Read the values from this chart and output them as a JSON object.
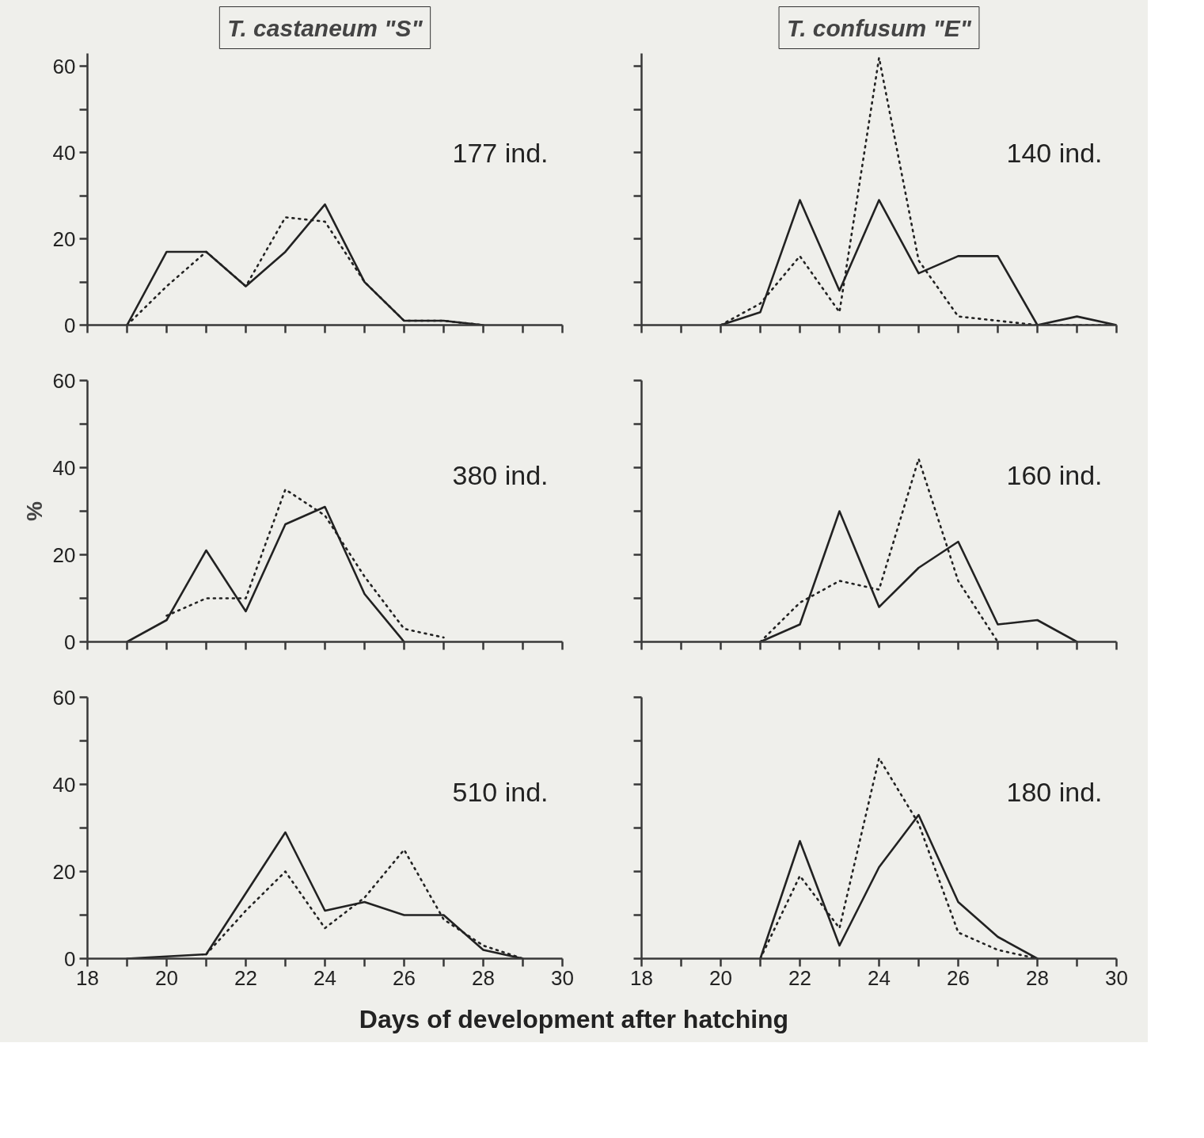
{
  "chart_data": [
    {
      "type": "line",
      "title": "T. castaneum \"S\"",
      "annotations": [
        "177 ind."
      ],
      "x": [
        19,
        20,
        21,
        22,
        23,
        24,
        25,
        26,
        27,
        28
      ],
      "xlim": [
        18,
        30
      ],
      "xticks": [
        18,
        {
          "value": 19,
          "label": null
        },
        20,
        {
          "value": 21,
          "label": null
        },
        22,
        {
          "value": 23,
          "label": null
        },
        24,
        {
          "value": 25,
          "label": null
        },
        26,
        {
          "value": 27,
          "label": null
        },
        28,
        {
          "value": 29,
          "label": null
        },
        30
      ],
      "ylim": [
        0,
        63
      ],
      "yticks": [
        0,
        {
          "value": 10,
          "label": null
        },
        20,
        {
          "value": 30,
          "label": null
        },
        40,
        {
          "value": 50,
          "label": null
        },
        60
      ],
      "tick_labels": "y",
      "series": [
        {
          "color": "#222222",
          "line_style": "solid",
          "values": [
            0,
            17,
            17,
            9,
            17,
            28,
            10,
            1,
            1,
            0
          ]
        },
        {
          "color": "#222222",
          "line_style": "dotted",
          "values": [
            0,
            9,
            17,
            9,
            25,
            24,
            10,
            1,
            1,
            0
          ]
        }
      ]
    },
    {
      "type": "line",
      "title": "T. confusum \"E\"",
      "annotations": [
        "140 ind."
      ],
      "x": [
        20,
        21,
        22,
        23,
        24,
        25,
        26,
        27,
        28,
        29,
        30
      ],
      "xlim": [
        18,
        30
      ],
      "xticks": [
        18,
        {
          "value": 19,
          "label": null
        },
        20,
        {
          "value": 21,
          "label": null
        },
        22,
        {
          "value": 23,
          "label": null
        },
        24,
        {
          "value": 25,
          "label": null
        },
        26,
        {
          "value": 27,
          "label": null
        },
        28,
        {
          "value": 29,
          "label": null
        },
        30
      ],
      "ylim": [
        0,
        63
      ],
      "yticks": [
        0,
        {
          "value": 10,
          "label": null
        },
        20,
        {
          "value": 30,
          "label": null
        },
        40,
        {
          "value": 50,
          "label": null
        },
        60
      ],
      "tick_labels": false,
      "series": [
        {
          "color": "#222222",
          "line_style": "solid",
          "values": [
            0,
            3,
            29,
            8,
            29,
            12,
            16,
            16,
            0,
            2,
            0
          ]
        },
        {
          "color": "#222222",
          "line_style": "dotted",
          "values": [
            0,
            5,
            16,
            3,
            62,
            15,
            2,
            1,
            0,
            0,
            0
          ]
        }
      ]
    },
    {
      "type": "line",
      "ylabel": "%",
      "annotations": [
        "380 ind."
      ],
      "x": [
        19,
        20,
        21,
        22,
        23,
        24,
        25,
        26,
        27
      ],
      "xlim": [
        18,
        30
      ],
      "xticks": [
        18,
        {
          "value": 19,
          "label": null
        },
        20,
        {
          "value": 21,
          "label": null
        },
        22,
        {
          "value": 23,
          "label": null
        },
        24,
        {
          "value": 25,
          "label": null
        },
        26,
        {
          "value": 27,
          "label": null
        },
        28,
        {
          "value": 29,
          "label": null
        },
        30
      ],
      "ylim": [
        0,
        60
      ],
      "yticks": [
        0,
        {
          "value": 10,
          "label": null
        },
        20,
        {
          "value": 30,
          "label": null
        },
        40,
        {
          "value": 50,
          "label": null
        },
        60
      ],
      "tick_labels": "y",
      "series": [
        {
          "color": "#222222",
          "line_style": "solid",
          "values": [
            0,
            5,
            21,
            7,
            27,
            31,
            11,
            0,
            null
          ]
        },
        {
          "color": "#222222",
          "line_style": "dotted",
          "values": [
            null,
            6,
            10,
            10,
            35,
            29,
            15,
            3,
            1
          ]
        }
      ]
    },
    {
      "type": "line",
      "annotations": [
        "160 ind."
      ],
      "x": [
        21,
        22,
        23,
        24,
        25,
        26,
        27,
        28,
        29
      ],
      "xlim": [
        18,
        30
      ],
      "xticks": [
        18,
        {
          "value": 19,
          "label": null
        },
        20,
        {
          "value": 21,
          "label": null
        },
        22,
        {
          "value": 23,
          "label": null
        },
        24,
        {
          "value": 25,
          "label": null
        },
        26,
        {
          "value": 27,
          "label": null
        },
        28,
        {
          "value": 29,
          "label": null
        },
        30
      ],
      "ylim": [
        0,
        60
      ],
      "yticks": [
        0,
        {
          "value": 10,
          "label": null
        },
        20,
        {
          "value": 30,
          "label": null
        },
        40,
        {
          "value": 50,
          "label": null
        },
        60
      ],
      "tick_labels": false,
      "series": [
        {
          "color": "#222222",
          "line_style": "solid",
          "values": [
            0,
            4,
            30,
            8,
            17,
            23,
            4,
            5,
            0
          ]
        },
        {
          "color": "#222222",
          "line_style": "dotted",
          "values": [
            0,
            9,
            14,
            12,
            42,
            14,
            0,
            null,
            null
          ]
        }
      ]
    },
    {
      "type": "line",
      "xlabel": "Days of development after hatching",
      "annotations": [
        "510 ind."
      ],
      "x": [
        19,
        20,
        21,
        22,
        23,
        24,
        25,
        26,
        27,
        28,
        29
      ],
      "xlim": [
        18,
        30
      ],
      "xticks": [
        18,
        {
          "value": 19,
          "label": null
        },
        20,
        {
          "value": 21,
          "label": null
        },
        22,
        {
          "value": 23,
          "label": null
        },
        24,
        {
          "value": 25,
          "label": null
        },
        26,
        {
          "value": 27,
          "label": null
        },
        28,
        {
          "value": 29,
          "label": null
        },
        30
      ],
      "ylim": [
        0,
        60
      ],
      "yticks": [
        0,
        {
          "value": 10,
          "label": null
        },
        20,
        {
          "value": 30,
          "label": null
        },
        40,
        {
          "value": 50,
          "label": null
        },
        60
      ],
      "series": [
        {
          "color": "#222222",
          "line_style": "solid",
          "values": [
            0,
            0.5,
            1,
            15,
            29,
            11,
            13,
            10,
            10,
            2,
            0
          ]
        },
        {
          "color": "#222222",
          "line_style": "dotted",
          "values": [
            null,
            null,
            1,
            11,
            20,
            7,
            14,
            25,
            9,
            3,
            0
          ]
        }
      ]
    },
    {
      "type": "line",
      "annotations": [
        "180 ind."
      ],
      "x": [
        21,
        22,
        23,
        24,
        25,
        26,
        27,
        28
      ],
      "xlim": [
        18,
        30
      ],
      "xticks": [
        18,
        {
          "value": 19,
          "label": null
        },
        20,
        {
          "value": 21,
          "label": null
        },
        22,
        {
          "value": 23,
          "label": null
        },
        24,
        {
          "value": 25,
          "label": null
        },
        26,
        {
          "value": 27,
          "label": null
        },
        28,
        {
          "value": 29,
          "label": null
        },
        30
      ],
      "ylim": [
        0,
        60
      ],
      "yticks": [
        0,
        {
          "value": 10,
          "label": null
        },
        20,
        {
          "value": 30,
          "label": null
        },
        40,
        {
          "value": 50,
          "label": null
        },
        60
      ],
      "tick_labels": "x",
      "series": [
        {
          "color": "#222222",
          "line_style": "solid",
          "values": [
            0,
            27,
            3,
            21,
            33,
            13,
            5,
            0
          ]
        },
        {
          "color": "#222222",
          "line_style": "dotted",
          "values": [
            0,
            19,
            7,
            46,
            31,
            6,
            2,
            0
          ]
        }
      ]
    }
  ]
}
